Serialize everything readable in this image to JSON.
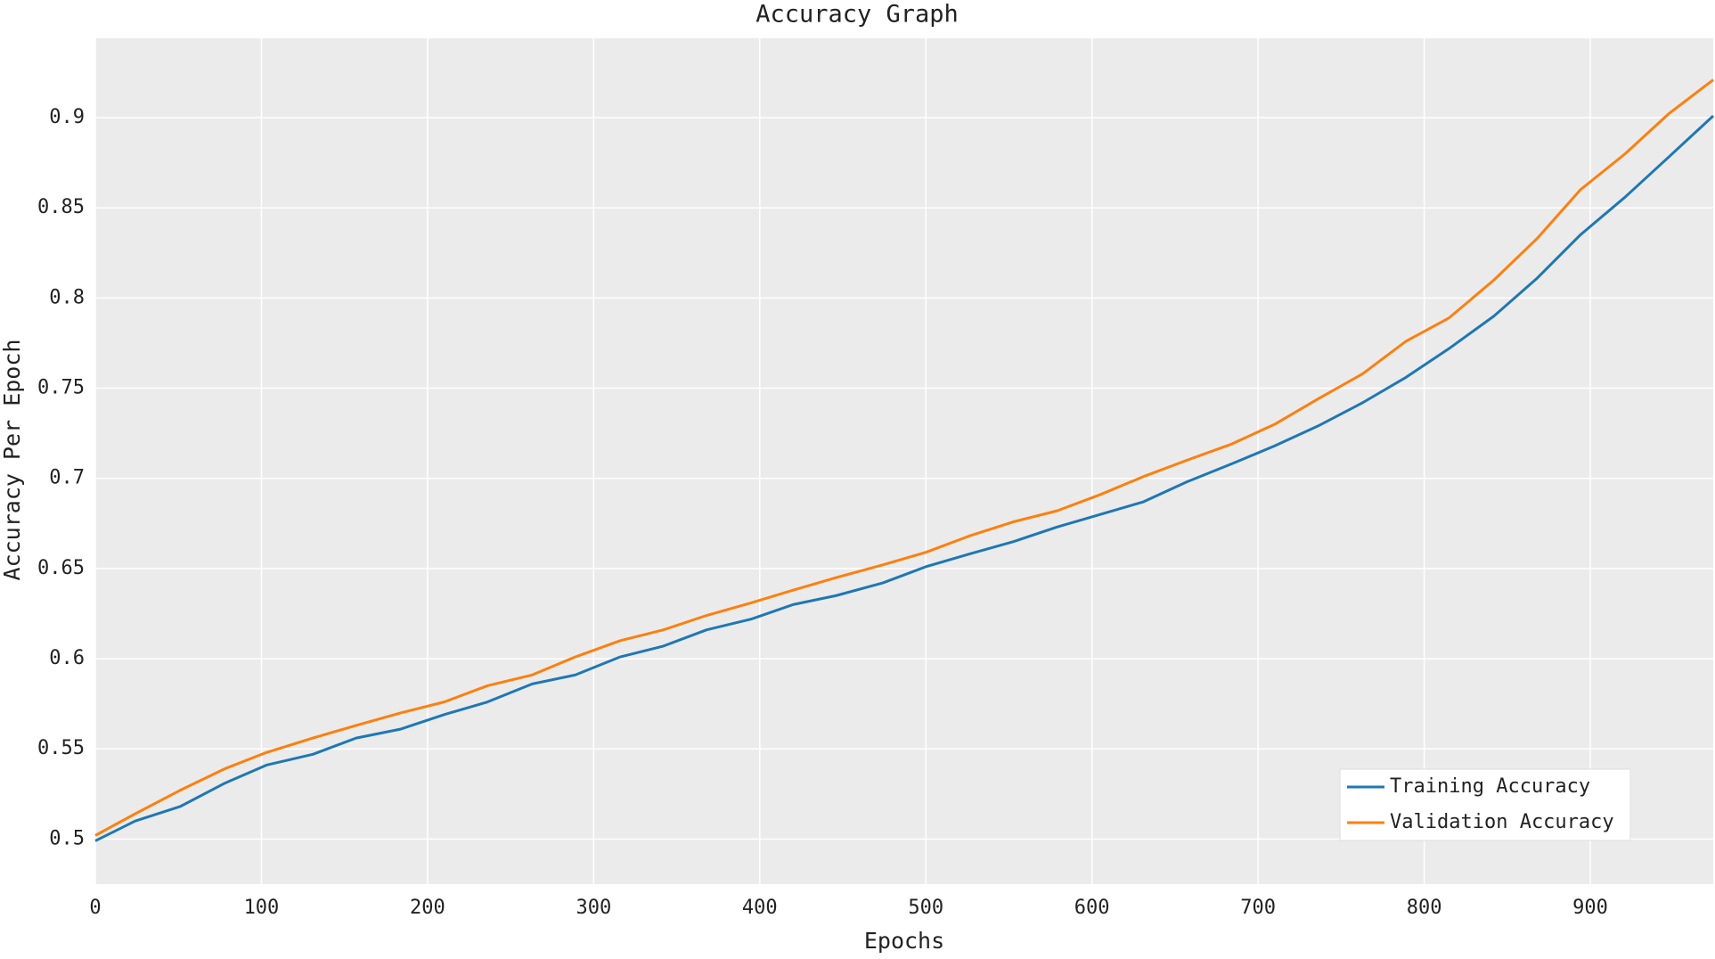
{
  "chart_data": {
    "type": "line",
    "title": "Accuracy Graph",
    "x_label": "Epochs",
    "y_label": "Accuracy Per Epoch",
    "x": [
      0,
      24,
      51,
      78,
      103,
      131,
      157,
      184,
      210,
      236,
      263,
      289,
      316,
      342,
      368,
      395,
      420,
      446,
      474,
      500,
      526,
      553,
      579,
      605,
      631,
      657,
      684,
      710,
      736,
      763,
      789,
      815,
      842,
      868,
      894,
      921,
      947,
      974
    ],
    "series": [
      {
        "name": "Training Accuracy",
        "color": "#1f77b4",
        "values": [
          0.499,
          0.51,
          0.518,
          0.531,
          0.541,
          0.547,
          0.556,
          0.561,
          0.569,
          0.576,
          0.586,
          0.591,
          0.601,
          0.607,
          0.616,
          0.622,
          0.63,
          0.635,
          0.642,
          0.651,
          0.658,
          0.665,
          0.673,
          0.68,
          0.687,
          0.698,
          0.708,
          0.718,
          0.729,
          0.742,
          0.756,
          0.772,
          0.79,
          0.811,
          0.835,
          0.856,
          0.878,
          0.901
        ]
      },
      {
        "name": "Validation Accuracy",
        "color": "#ff7f0e",
        "values": [
          0.502,
          0.514,
          0.527,
          0.539,
          0.548,
          0.556,
          0.563,
          0.57,
          0.576,
          0.585,
          0.591,
          0.601,
          0.61,
          0.616,
          0.624,
          0.631,
          0.638,
          0.645,
          0.652,
          0.659,
          0.668,
          0.676,
          0.682,
          0.691,
          0.701,
          0.71,
          0.719,
          0.73,
          0.744,
          0.758,
          0.776,
          0.789,
          0.81,
          0.833,
          0.86,
          0.88,
          0.902,
          0.921
        ]
      }
    ],
    "xlim": [
      0,
      974
    ],
    "xticks": [
      0,
      100,
      200,
      300,
      400,
      500,
      600,
      700,
      800,
      900
    ],
    "ylim": [
      0.475,
      0.944
    ],
    "yticks": [
      0.5,
      0.55,
      0.6,
      0.65,
      0.7,
      0.75,
      0.8,
      0.85,
      0.9
    ],
    "grid": true,
    "legend": "lower right"
  }
}
